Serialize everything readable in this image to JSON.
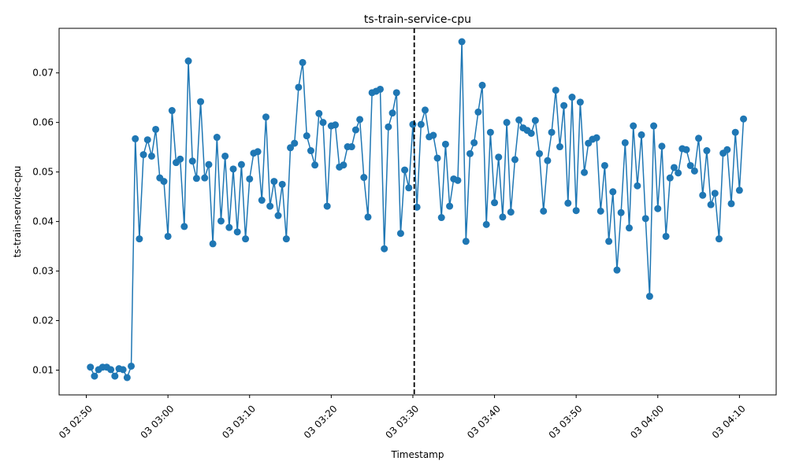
{
  "chart_data": {
    "type": "line",
    "title": "ts-train-service-cpu",
    "xlabel": "Timestamp",
    "ylabel": "ts-train-service-cpu",
    "ylim": [
      0.005,
      0.079
    ],
    "y_ticks": [
      "0.01",
      "0.02",
      "0.03",
      "0.04",
      "0.05",
      "0.06",
      "0.07"
    ],
    "x_ticks": [
      "03 02:50",
      "03 03:00",
      "03 03:10",
      "03 03:20",
      "03 03:30",
      "03 03:40",
      "03 03:50",
      "03 04:00",
      "03 04:10"
    ],
    "xlim": [
      "02:46:40",
      "04:14:30"
    ],
    "vline": "03:30:10",
    "grid": false,
    "line_color": "#1f77b4",
    "vline_color": "#000000",
    "series": [
      {
        "x": [
          "02:50:30",
          "02:51:00",
          "02:51:30",
          "02:52:00",
          "02:52:30",
          "02:53:00",
          "02:53:30",
          "02:54:00",
          "02:54:30",
          "02:55:00",
          "02:55:30",
          "02:56:00",
          "02:56:30",
          "02:57:00",
          "02:57:30",
          "02:58:00",
          "02:58:30",
          "02:59:00",
          "02:59:30",
          "03:00:00",
          "03:00:30",
          "03:01:00",
          "03:01:30",
          "03:02:00",
          "03:02:30",
          "03:03:00",
          "03:03:30",
          "03:04:00",
          "03:04:30",
          "03:05:00",
          "03:05:30",
          "03:06:00",
          "03:06:30",
          "03:07:00",
          "03:07:30",
          "03:08:00",
          "03:08:30",
          "03:09:00",
          "03:09:30",
          "03:10:00",
          "03:10:30",
          "03:11:00",
          "03:11:30",
          "03:12:00",
          "03:12:30",
          "03:13:00",
          "03:13:30",
          "03:14:00",
          "03:14:30",
          "03:15:00",
          "03:15:30",
          "03:16:00",
          "03:16:30",
          "03:17:00",
          "03:17:30",
          "03:18:00",
          "03:18:30",
          "03:19:00",
          "03:19:30",
          "03:20:00",
          "03:20:30",
          "03:21:00",
          "03:21:30",
          "03:22:00",
          "03:22:30",
          "03:23:00",
          "03:23:30",
          "03:24:00",
          "03:24:30",
          "03:25:00",
          "03:25:30",
          "03:26:00",
          "03:26:30",
          "03:27:00",
          "03:27:30",
          "03:28:00",
          "03:28:30",
          "03:29:00",
          "03:29:30",
          "03:30:00",
          "03:30:30",
          "03:31:00",
          "03:31:30",
          "03:32:00",
          "03:32:30",
          "03:33:00",
          "03:33:30",
          "03:34:00",
          "03:34:30",
          "03:35:00",
          "03:35:30",
          "03:36:00",
          "03:36:30",
          "03:37:00",
          "03:37:30",
          "03:38:00",
          "03:38:30",
          "03:39:00",
          "03:39:30",
          "03:40:00",
          "03:40:30",
          "03:41:00",
          "03:41:30",
          "03:42:00",
          "03:42:30",
          "03:43:00",
          "03:43:30",
          "03:44:00",
          "03:44:30",
          "03:45:00",
          "03:45:30",
          "03:46:00",
          "03:46:30",
          "03:47:00",
          "03:47:30",
          "03:48:00",
          "03:48:30",
          "03:49:00",
          "03:49:30",
          "03:50:00",
          "03:50:30",
          "03:51:00",
          "03:51:30",
          "03:52:00",
          "03:52:30",
          "03:53:00",
          "03:53:30",
          "03:54:00",
          "03:54:30",
          "03:55:00",
          "03:55:30",
          "03:56:00",
          "03:56:30",
          "03:57:00",
          "03:57:30",
          "03:58:00",
          "03:58:30",
          "03:59:00",
          "03:59:30",
          "04:00:00",
          "04:00:30",
          "04:01:00",
          "04:01:30",
          "04:02:00",
          "04:02:30",
          "04:03:00",
          "04:03:30",
          "04:04:00",
          "04:04:30",
          "04:05:00",
          "04:05:30",
          "04:06:00",
          "04:06:30",
          "04:07:00",
          "04:07:30",
          "04:08:00",
          "04:08:30",
          "04:09:00",
          "04:09:30",
          "04:10:00",
          "04:10:30"
        ],
        "values": [
          0.0106,
          0.0088,
          0.0101,
          0.0106,
          0.0106,
          0.0101,
          0.0088,
          0.0103,
          0.0101,
          0.0085,
          0.0108,
          0.0567,
          0.0365,
          0.0535,
          0.0565,
          0.0532,
          0.0586,
          0.0488,
          0.0481,
          0.037,
          0.0624,
          0.0519,
          0.0526,
          0.039,
          0.0724,
          0.0522,
          0.0487,
          0.0642,
          0.0488,
          0.0515,
          0.0355,
          0.057,
          0.0401,
          0.0532,
          0.0388,
          0.0506,
          0.0379,
          0.0515,
          0.0365,
          0.0486,
          0.0538,
          0.0541,
          0.0443,
          0.0611,
          0.0431,
          0.0481,
          0.0412,
          0.0475,
          0.0365,
          0.0549,
          0.0558,
          0.0671,
          0.0721,
          0.0573,
          0.0543,
          0.0514,
          0.0618,
          0.06,
          0.0431,
          0.0593,
          0.0595,
          0.051,
          0.0514,
          0.0551,
          0.0551,
          0.0585,
          0.0606,
          0.0489,
          0.0409,
          0.066,
          0.0663,
          0.0667,
          0.0345,
          0.0591,
          0.0619,
          0.066,
          0.0376,
          0.0504,
          0.0468,
          0.0596,
          0.0429,
          0.0596,
          0.0625,
          0.0571,
          0.0574,
          0.0528,
          0.0408,
          0.0556,
          0.0431,
          0.0486,
          0.0483,
          0.0763,
          0.036,
          0.0537,
          0.0559,
          0.0621,
          0.0675,
          0.0394,
          0.058,
          0.0438,
          0.053,
          0.0409,
          0.06,
          0.0419,
          0.0525,
          0.0605,
          0.0589,
          0.0584,
          0.0578,
          0.0604,
          0.0537,
          0.0421,
          0.0523,
          0.058,
          0.0665,
          0.0551,
          0.0634,
          0.0437,
          0.0651,
          0.0422,
          0.0641,
          0.0499,
          0.0558,
          0.0566,
          0.0569,
          0.0421,
          0.0513,
          0.036,
          0.046,
          0.0302,
          0.0418,
          0.0559,
          0.0387,
          0.0593,
          0.0472,
          0.0575,
          0.0406,
          0.0249,
          0.0593,
          0.0426,
          0.0552,
          0.037,
          0.0488,
          0.0509,
          0.0498,
          0.0547,
          0.0545,
          0.0513,
          0.0502,
          0.0568,
          0.0453,
          0.0543,
          0.0434,
          0.0457,
          0.0365,
          0.0538,
          0.0545,
          0.0436,
          0.058,
          0.0463,
          0.0607
        ]
      }
    ]
  }
}
